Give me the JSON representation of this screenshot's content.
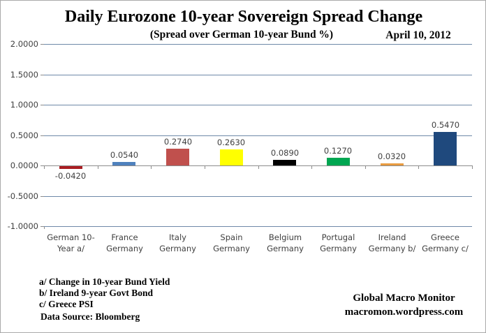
{
  "header": {
    "title": "Daily Eurozone 10-year Sovereign Spread Change",
    "subtitle": "(Spread over German 10-year Bund  %)",
    "date": "April 10,  2012"
  },
  "notes": {
    "a": "a/ Change in 10-year Bund  Yield",
    "b": "b/ Ireland 9-year Govt Bond",
    "c": "c/ Greece PSI",
    "source": "Data Source:  Bloomberg"
  },
  "credits": {
    "line1": "Global Macro Monitor",
    "line2": "macromon.wordpress.com"
  },
  "colors": {
    "gridline": "#6e89a8",
    "axis": "#8c8c8c",
    "label_text": "#3f3f3f"
  },
  "chart_data": {
    "type": "bar",
    "title": "Daily Eurozone 10-year Sovereign Spread Change",
    "subtitle": "(Spread over German 10-year Bund %)",
    "xlabel": "",
    "ylabel": "",
    "ylim": [
      -1.0,
      2.0
    ],
    "grid": true,
    "legend": false,
    "categories": [
      [
        "German 10-",
        "Year a/"
      ],
      [
        "France",
        "Germany"
      ],
      [
        "Italy",
        "Germany"
      ],
      [
        "Spain",
        "Germany"
      ],
      [
        "Belgium",
        "Germany"
      ],
      [
        "Portugal",
        "Germany"
      ],
      [
        "Ireland",
        "Germany b/"
      ],
      [
        "Greece",
        "Germany c/"
      ]
    ],
    "category_names": [
      "german-10-year",
      "france-germany",
      "italy-germany",
      "spain-germany",
      "belgium-germany",
      "portugal-germany",
      "ireland-germany",
      "greece-germany"
    ],
    "values": [
      -0.042,
      0.054,
      0.274,
      0.263,
      0.089,
      0.127,
      0.032,
      0.547
    ],
    "value_labels": [
      "-0.0420",
      "0.0540",
      "0.2740",
      "0.2630",
      "0.0890",
      "0.1270",
      "0.0320",
      "0.5470"
    ],
    "bar_colors": [
      "#a91d22",
      "#4f81bd",
      "#c0504d",
      "#ffff00",
      "#000000",
      "#00a651",
      "#e89b40",
      "#1f497d"
    ],
    "ytick_values": [
      2.0,
      1.5,
      1.0,
      0.5,
      0.0,
      -0.5,
      -1.0
    ],
    "ytick_labels": [
      "2.0000",
      "1.5000",
      "1.0000",
      "0.5000",
      "0.0000",
      "-0.5000",
      "-1.0000"
    ]
  }
}
